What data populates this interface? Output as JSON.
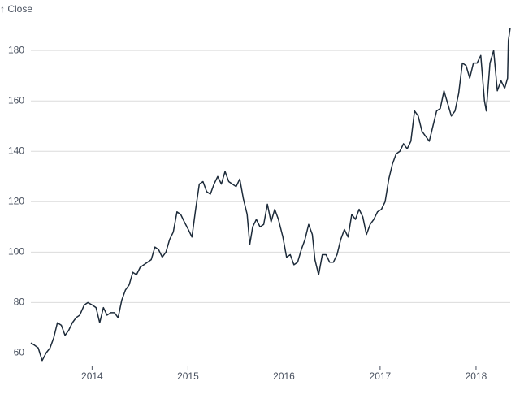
{
  "chart_data": {
    "type": "line",
    "y_label": "↑ Close",
    "x": [
      "2013-05-13",
      "2013-05-28",
      "2013-06-10",
      "2013-06-25",
      "2013-07-10",
      "2013-07-25",
      "2013-08-08",
      "2013-08-22",
      "2013-09-06",
      "2013-09-20",
      "2013-10-04",
      "2013-10-18",
      "2013-11-01",
      "2013-11-15",
      "2013-12-02",
      "2013-12-16",
      "2014-01-02",
      "2014-01-16",
      "2014-01-30",
      "2014-02-13",
      "2014-02-27",
      "2014-03-13",
      "2014-03-27",
      "2014-04-10",
      "2014-04-24",
      "2014-05-08",
      "2014-05-22",
      "2014-06-05",
      "2014-06-19",
      "2014-07-03",
      "2014-07-17",
      "2014-07-31",
      "2014-08-14",
      "2014-08-28",
      "2014-09-11",
      "2014-09-25",
      "2014-10-09",
      "2014-10-23",
      "2014-11-06",
      "2014-11-20",
      "2014-12-04",
      "2014-12-18",
      "2015-01-02",
      "2015-01-16",
      "2015-01-30",
      "2015-02-13",
      "2015-02-27",
      "2015-03-13",
      "2015-03-27",
      "2015-04-10",
      "2015-04-24",
      "2015-05-08",
      "2015-05-22",
      "2015-06-05",
      "2015-06-19",
      "2015-07-03",
      "2015-07-17",
      "2015-07-31",
      "2015-08-14",
      "2015-08-24",
      "2015-09-04",
      "2015-09-18",
      "2015-10-02",
      "2015-10-16",
      "2015-10-30",
      "2015-11-13",
      "2015-11-27",
      "2015-12-11",
      "2015-12-28",
      "2016-01-11",
      "2016-01-25",
      "2016-02-08",
      "2016-02-22",
      "2016-03-07",
      "2016-03-21",
      "2016-04-04",
      "2016-04-18",
      "2016-04-28",
      "2016-05-12",
      "2016-05-26",
      "2016-06-09",
      "2016-06-23",
      "2016-07-07",
      "2016-07-21",
      "2016-08-04",
      "2016-08-18",
      "2016-09-01",
      "2016-09-15",
      "2016-09-29",
      "2016-10-13",
      "2016-10-27",
      "2016-11-10",
      "2016-11-24",
      "2016-12-08",
      "2016-12-22",
      "2017-01-06",
      "2017-01-20",
      "2017-02-03",
      "2017-02-17",
      "2017-03-03",
      "2017-03-17",
      "2017-03-31",
      "2017-04-14",
      "2017-04-28",
      "2017-05-12",
      "2017-05-26",
      "2017-06-09",
      "2017-06-23",
      "2017-07-07",
      "2017-07-21",
      "2017-08-04",
      "2017-08-18",
      "2017-09-01",
      "2017-09-15",
      "2017-09-29",
      "2017-10-13",
      "2017-10-27",
      "2017-11-10",
      "2017-11-24",
      "2017-12-08",
      "2017-12-22",
      "2018-01-05",
      "2018-01-19",
      "2018-02-02",
      "2018-02-09",
      "2018-02-23",
      "2018-03-09",
      "2018-03-23",
      "2018-04-06",
      "2018-04-20",
      "2018-05-01",
      "2018-05-04",
      "2018-05-11"
    ],
    "values": [
      64,
      63,
      62,
      57,
      60,
      62,
      66,
      72,
      71,
      67,
      69,
      72,
      74,
      75,
      79,
      80,
      79,
      78,
      72,
      78,
      75,
      76,
      76,
      74,
      81,
      85,
      87,
      92,
      91,
      94,
      95,
      96,
      97,
      102,
      101,
      98,
      100,
      105,
      108,
      116,
      115,
      112,
      109,
      106,
      117,
      127,
      128,
      124,
      123,
      127,
      130,
      127,
      132,
      128,
      127,
      126,
      129,
      121,
      115,
      103,
      110,
      113,
      110,
      111,
      119,
      112,
      117,
      113,
      106,
      98,
      99,
      95,
      96,
      101,
      105,
      111,
      107,
      97,
      91,
      99,
      99,
      96,
      96,
      99,
      105,
      109,
      106,
      115,
      113,
      117,
      114,
      107,
      111,
      113,
      116,
      117,
      120,
      129,
      135,
      139,
      140,
      143,
      141,
      144,
      156,
      154,
      148,
      146,
      144,
      150,
      156,
      157,
      164,
      159,
      154,
      156,
      163,
      175,
      174,
      169,
      175,
      175,
      178,
      160,
      156,
      175,
      180,
      164,
      168,
      165,
      169,
      184,
      189
    ],
    "color": "#1d2b3a",
    "xlim": [
      "2013-05-13",
      "2018-05-11"
    ],
    "xticks": [
      {
        "value": "2014-01-01",
        "label": "2014"
      },
      {
        "value": "2015-01-01",
        "label": "2015"
      },
      {
        "value": "2016-01-01",
        "label": "2016"
      },
      {
        "value": "2017-01-01",
        "label": "2017"
      },
      {
        "value": "2018-01-01",
        "label": "2018"
      }
    ],
    "ylim": [
      55,
      191
    ],
    "yticks": [
      60,
      80,
      100,
      120,
      140,
      160,
      180
    ],
    "grid": true
  }
}
